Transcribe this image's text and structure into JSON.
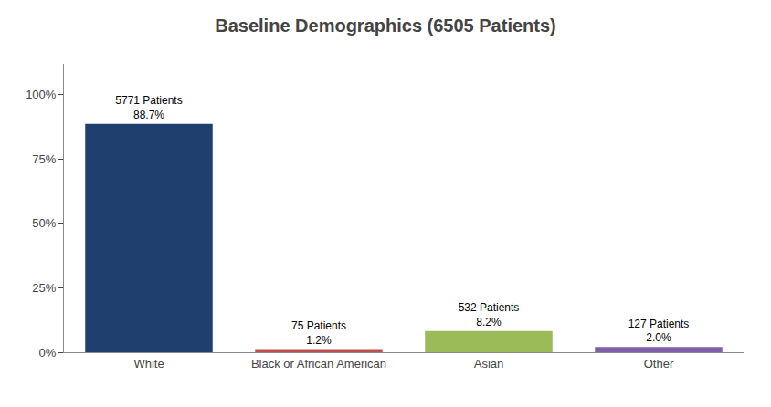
{
  "chart_data": {
    "type": "bar",
    "title": "Baseline Demographics (6505 Patients)",
    "categories": [
      "White",
      "Black or African American",
      "Asian",
      "Other"
    ],
    "values": [
      88.7,
      1.2,
      8.2,
      2.0
    ],
    "colors": [
      "#1F3F6E",
      "#C0504D",
      "#9BBB59",
      "#7F5FA8"
    ],
    "data_labels": true,
    "value_labels": [
      "88.7%",
      "1.2%",
      "8.2%",
      "2.0%"
    ],
    "annotations": [
      "5771 Patients",
      "75 Patients",
      "532 Patients",
      "127 Patients"
    ],
    "ylim": [
      0,
      112
    ],
    "yticks": [
      {
        "value": 0,
        "label": "0%"
      },
      {
        "value": 25,
        "label": "25%"
      },
      {
        "value": 50,
        "label": "50%"
      },
      {
        "value": 75,
        "label": "75%"
      },
      {
        "value": 100,
        "label": "100%"
      }
    ],
    "grid": false
  }
}
